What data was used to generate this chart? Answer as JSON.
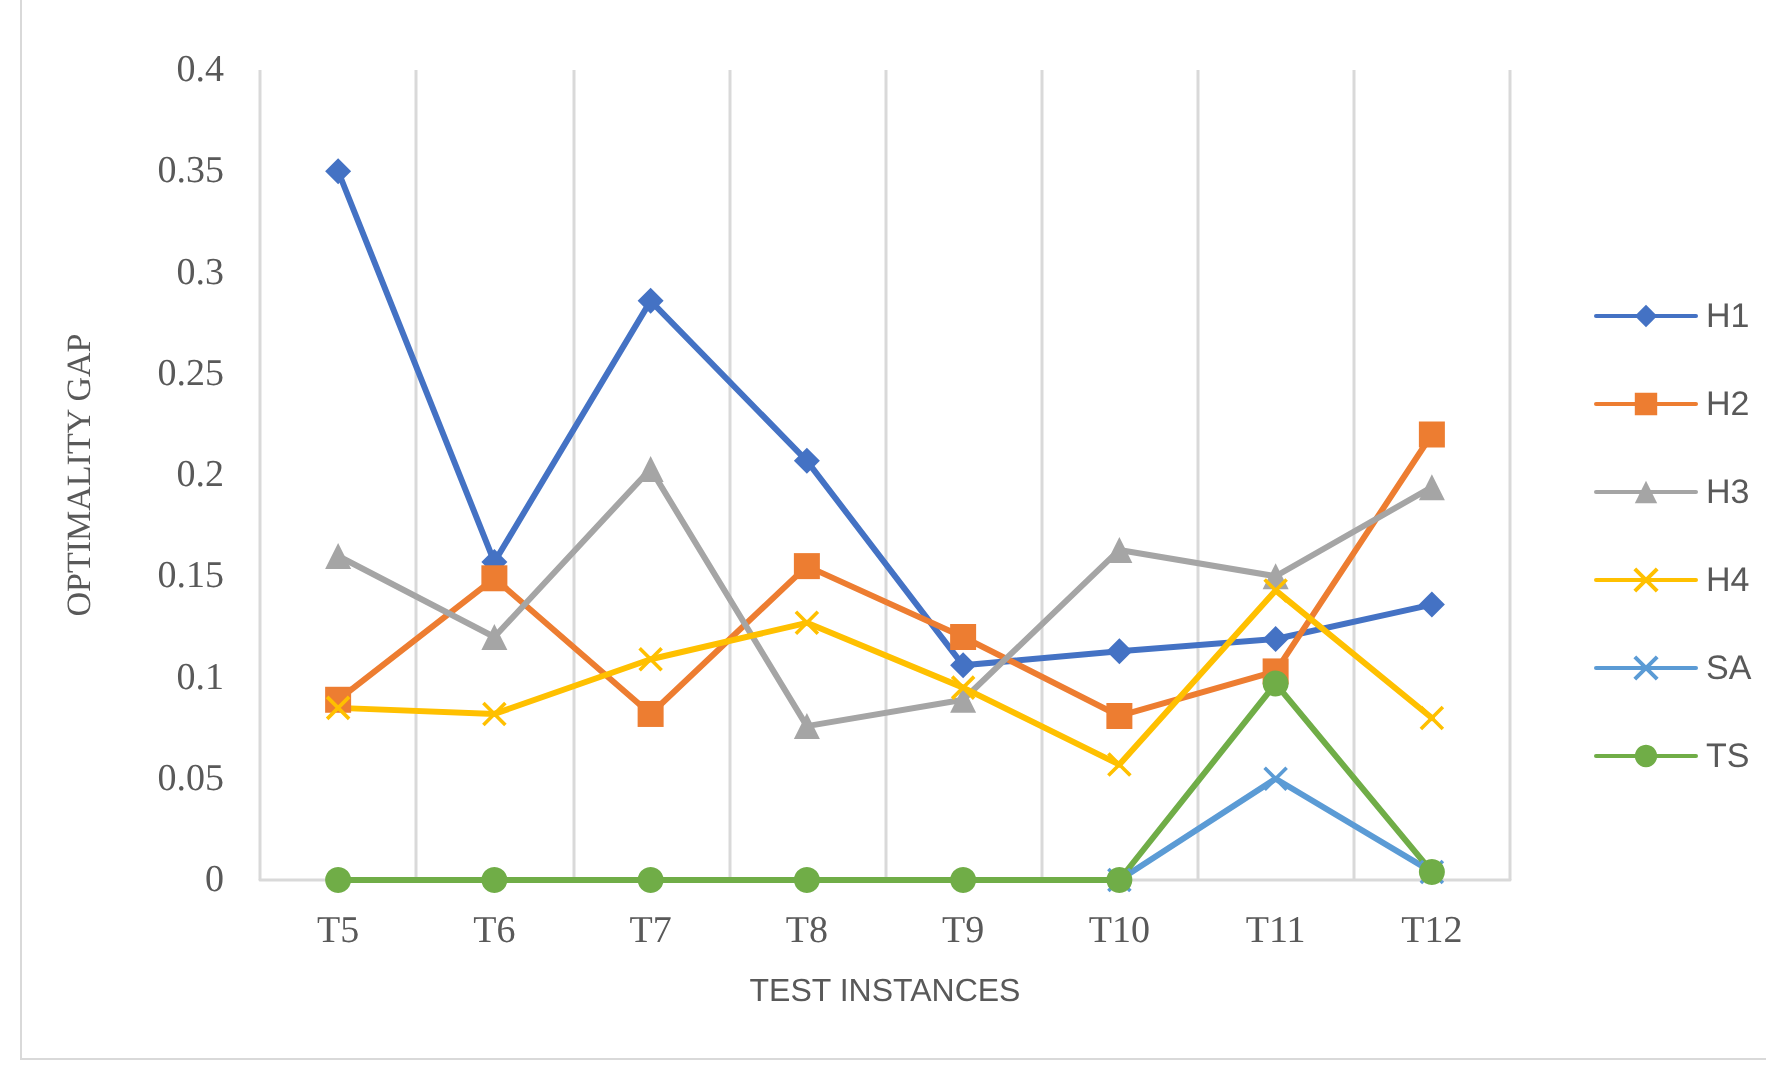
{
  "chart_data": {
    "type": "line",
    "xlabel": "TEST INSTANCES",
    "ylabel": "OPTIMALITY GAP",
    "categories": [
      "T5",
      "T6",
      "T7",
      "T8",
      "T9",
      "T10",
      "T11",
      "T12"
    ],
    "series": [
      {
        "name": "H1",
        "color": "#4472c4",
        "marker": "diamond",
        "values": [
          0.35,
          0.157,
          0.286,
          0.207,
          0.106,
          0.113,
          0.119,
          0.136
        ]
      },
      {
        "name": "H2",
        "color": "#ed7d31",
        "marker": "square",
        "values": [
          0.089,
          0.149,
          0.082,
          0.155,
          0.12,
          0.081,
          0.103,
          0.22
        ]
      },
      {
        "name": "H3",
        "color": "#a5a5a5",
        "marker": "triangle",
        "values": [
          0.16,
          0.12,
          0.203,
          0.076,
          0.089,
          0.163,
          0.15,
          0.194
        ]
      },
      {
        "name": "H4",
        "color": "#ffc000",
        "marker": "cross",
        "values": [
          0.085,
          0.082,
          0.109,
          0.127,
          0.095,
          0.057,
          0.143,
          0.08
        ]
      },
      {
        "name": "SA",
        "color": "#5b9bd5",
        "marker": "cross",
        "values": [
          null,
          null,
          null,
          null,
          null,
          0,
          0.05,
          0.004
        ]
      },
      {
        "name": "TS",
        "color": "#70ad47",
        "marker": "circle",
        "values": [
          0,
          0,
          0,
          0,
          0,
          0,
          0.097,
          0.004
        ]
      }
    ],
    "ylim": [
      0,
      0.4
    ],
    "yticks": [
      0,
      0.05,
      0.1,
      0.15,
      0.2,
      0.25,
      0.3,
      0.35,
      0.4
    ],
    "grid": "x",
    "legend": "right",
    "line_style": "solid"
  }
}
